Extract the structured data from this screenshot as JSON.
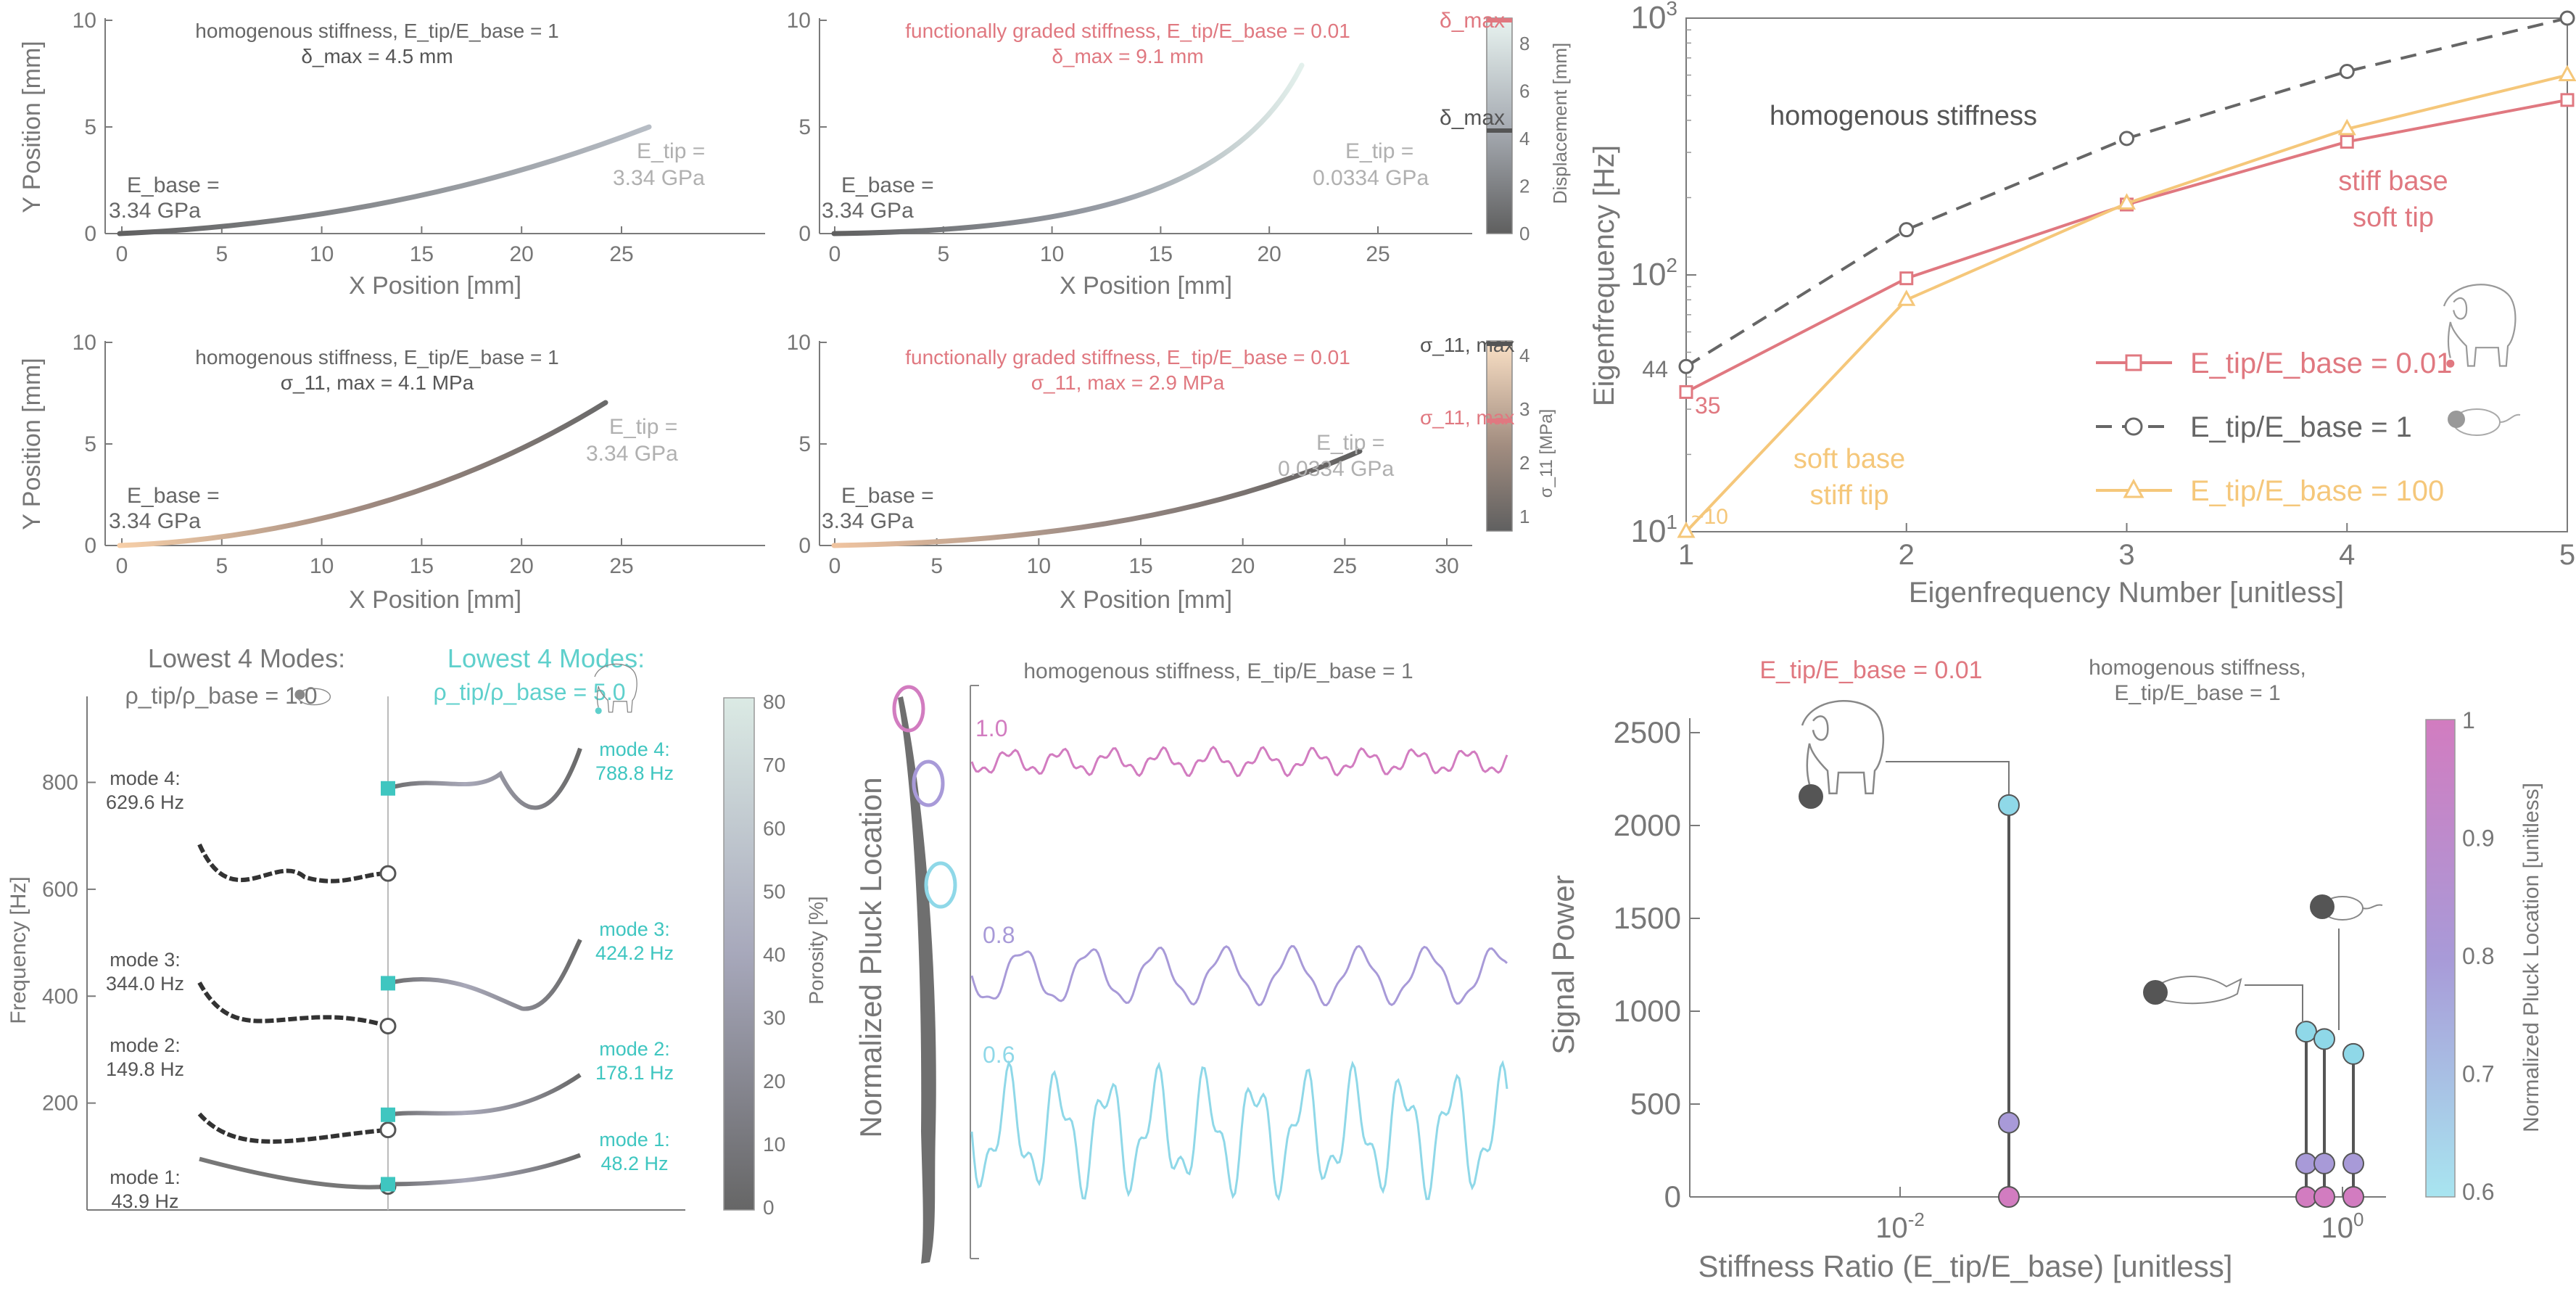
{
  "colors": {
    "axis": "#7a7a7a",
    "text": "#8a8a8a",
    "dark": "#555555",
    "red": "#e07880",
    "gray": "#666666",
    "yellow": "#f5c77a",
    "cyan": "#5fd0cc",
    "magenta": "#d27cc0",
    "purple": "#a89ad8",
    "lightblue": "#8fd8e8"
  },
  "panels": {
    "disp_h": {
      "title": "homogenous stiffness, E_tip/E_base = 1",
      "metric": "δ_max = 4.5 mm",
      "xlabel": "X Position [mm]",
      "ylabel": "Y Position [mm]",
      "xticks": [
        "0",
        "5",
        "10",
        "15",
        "20",
        "25"
      ],
      "yticks": [
        "0",
        "5",
        "10"
      ],
      "base_label": "E_base =",
      "base_value": "3.34 GPa",
      "tip_label": "E_tip =",
      "tip_value": "3.34 GPa"
    },
    "disp_g": {
      "title": "functionally graded stiffness, E_tip/E_base = 0.01",
      "metric": "δ_max = 9.1 mm",
      "xlabel": "X Position [mm]",
      "xticks": [
        "0",
        "5",
        "10",
        "15",
        "20",
        "25"
      ],
      "yticks": [
        "0",
        "5",
        "10"
      ],
      "base_label": "E_base =",
      "base_value": "3.34 GPa",
      "tip_label": "E_tip =",
      "tip_value": "0.0334 GPa",
      "cbar_label": "Displacement [mm]",
      "cbar_ticks": [
        "0",
        "2",
        "4",
        "6",
        "8"
      ],
      "mark_top": "δ_max",
      "mark_mid": "δ_max"
    },
    "stress_h": {
      "title": "homogenous stiffness, E_tip/E_base = 1",
      "metric": "σ_11, max = 4.1 MPa",
      "xlabel": "X Position [mm]",
      "ylabel": "Y Position [mm]",
      "xticks": [
        "0",
        "5",
        "10",
        "15",
        "20",
        "25"
      ],
      "yticks": [
        "0",
        "5",
        "10"
      ],
      "base_label": "E_base =",
      "base_value": "3.34 GPa",
      "tip_label": "E_tip =",
      "tip_value": "3.34 GPa"
    },
    "stress_g": {
      "title": "functionally graded stiffness, E_tip/E_base = 0.01",
      "metric": "σ_11, max = 2.9 MPa",
      "xlabel": "X Position [mm]",
      "xticks": [
        "0",
        "5",
        "10",
        "15",
        "20",
        "25",
        "30"
      ],
      "yticks": [
        "0",
        "5",
        "10"
      ],
      "base_label": "E_base =",
      "base_value": "3.34 GPa",
      "tip_label": "E_tip =",
      "tip_value": "0.0334 GPa",
      "cbar_label": "σ_11 [MPa]",
      "cbar_ticks": [
        "1",
        "2",
        "3",
        "4"
      ],
      "mark_top": "σ_11, max",
      "mark_mid": "σ_11, max"
    },
    "modes": {
      "left_title": "Lowest 4 Modes:",
      "left_ratio": "ρ_tip/ρ_base = 1.0",
      "right_title": "Lowest 4 Modes:",
      "right_ratio": "ρ_tip/ρ_base = 5.0",
      "ylabel": "Frequency [Hz]",
      "yticks": [
        "200",
        "400",
        "600",
        "800"
      ],
      "cbar_label": "Porosity [%]",
      "cbar_ticks": [
        "0",
        "10",
        "20",
        "30",
        "40",
        "50",
        "60",
        "70",
        "80"
      ],
      "left_labels": [
        [
          "mode 1:",
          "43.9 Hz"
        ],
        [
          "mode 2:",
          "149.8 Hz"
        ],
        [
          "mode 3:",
          "344.0 Hz"
        ],
        [
          "mode 4:",
          "629.6 Hz"
        ]
      ],
      "right_labels": [
        [
          "mode 1:",
          "48.2 Hz"
        ],
        [
          "mode 2:",
          "178.1 Hz"
        ],
        [
          "mode 3:",
          "424.2 Hz"
        ],
        [
          "mode 4:",
          "788.8 Hz"
        ]
      ]
    },
    "pluck": {
      "title": "homogenous stiffness, E_tip/E_base = 1",
      "ylabel": "Normalized Pluck Location",
      "traces": [
        "1.0",
        "0.8",
        "0.6"
      ]
    },
    "signal": {
      "left_title": "E_tip/E_base = 0.01",
      "right_title_1": "homogenous stiffness,",
      "right_title_2": "E_tip/E_base = 1",
      "xlabel": "Stiffness Ratio (E_tip/E_base) [unitless]",
      "ylabel": "Signal Power",
      "yticks": [
        "0",
        "500",
        "1000",
        "1500",
        "2000",
        "2500"
      ],
      "xticks": [
        "10^-2",
        "10^0"
      ],
      "cbar_label": "Normalized Pluck Location [unitless]",
      "cbar_ticks": [
        "0.6",
        "0.7",
        "0.8",
        "0.9",
        "1"
      ]
    }
  },
  "chart_data": [
    {
      "type": "line",
      "id": "eigenfrequency",
      "xlabel": "Eigenfrequency Number [unitless]",
      "ylabel": "Eigenfrequency [Hz]",
      "x": [
        1,
        2,
        3,
        4,
        5
      ],
      "xlim": [
        1,
        5
      ],
      "ylim": [
        10,
        1000
      ],
      "yscale": "log",
      "xticks": [
        "1",
        "2",
        "3",
        "4",
        "5"
      ],
      "yticks": [
        "10^1",
        "10^2",
        "10^3"
      ],
      "series": [
        {
          "name": "E_tip/E_base = 0.01",
          "values": [
            35,
            97,
            188,
            330,
            480
          ],
          "marker": "square",
          "color": "#e07880",
          "dash": false
        },
        {
          "name": "E_tip/E_base = 1",
          "values": [
            44,
            150,
            340,
            620,
            1000
          ],
          "marker": "circle",
          "color": "#666666",
          "dash": true
        },
        {
          "name": "E_tip/E_base = 100",
          "values": [
            10,
            80,
            190,
            370,
            600
          ],
          "marker": "triangle",
          "color": "#f5c77a",
          "dash": false
        }
      ],
      "annotations": {
        "hom": "homogenous stiffness",
        "soft1": "stiff base",
        "soft2": "soft tip",
        "stiff1": "soft base",
        "stiff2": "stiff tip",
        "v44": "44",
        "v35": "35",
        "v10": "~10"
      }
    }
  ]
}
